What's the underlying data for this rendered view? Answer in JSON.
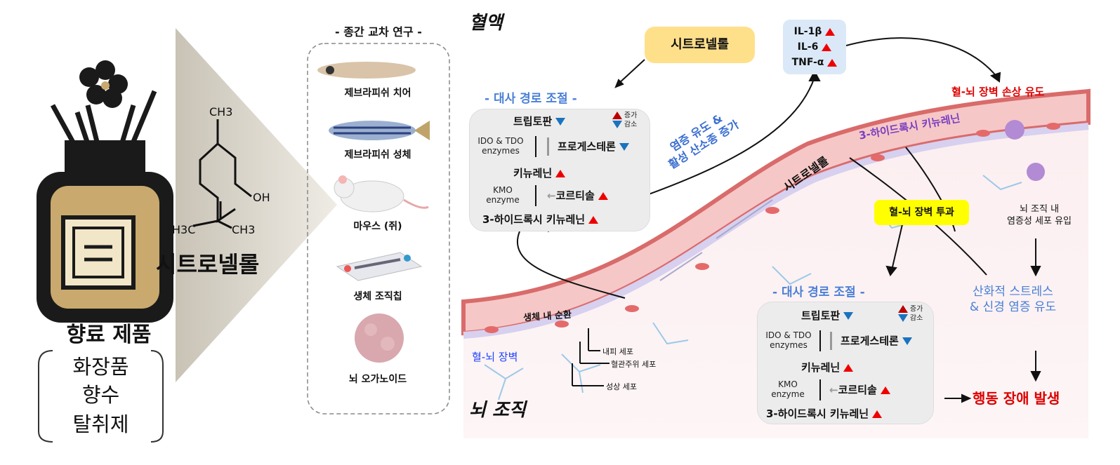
{
  "product": {
    "title": "향료 제품",
    "items": [
      "화장품",
      "향수",
      "탈취제"
    ]
  },
  "compound": {
    "name": "시트로넬롤",
    "atoms": {
      "ch3": "CH3",
      "oh": "OH",
      "h3c": "H3C",
      "ch3b": "CH3"
    }
  },
  "cross_species": {
    "title": "- 종간 교차 연구 -",
    "models": [
      "제브라피쉬 치어",
      "제브라피쉬 성체",
      "마우스 (쥐)",
      "생체 조직칩",
      "뇌 오가노이드"
    ]
  },
  "regions": {
    "blood": "혈액",
    "brain": "뇌 조직"
  },
  "citronellol_box": "시트로넬롤",
  "cytokines": [
    "IL-1β",
    "IL-6",
    "TNF-α"
  ],
  "bbb_damage": "혈-뇌 장벽 손상 유도",
  "inflammation_text": [
    "염증 유도 &",
    "활성 산소종 증가"
  ],
  "hk_label": "3-하이드록시 키뉴레닌",
  "vessel_citronellol": "시트로넬롤",
  "bbb_penetration": "혈-뇌 장벽 투과",
  "inflammatory_cells": [
    "뇌 조직 내",
    "염증성 세포 유입"
  ],
  "oxidative": [
    "산화적 스트레스",
    "& 신경 염증 유도"
  ],
  "behavior": "행동 장애 발생",
  "tissue_labels": {
    "circulation": "생체 내 순환",
    "bbb": "혈-뇌 장벽",
    "endothelial": "내피 세포",
    "pericyte": "혈관주위 세포",
    "astrocyte": "성상 세포"
  },
  "metabolic": {
    "title": "- 대사 경로 조절 -",
    "legend": {
      "increase": "증가",
      "decrease": "감소"
    },
    "tryptophan": "트립토판",
    "ido": [
      "IDO & TDO",
      "enzymes"
    ],
    "progesterone": "프로게스테론",
    "kynurenine": "키뉴레닌",
    "kmo": [
      "KMO",
      "enzyme"
    ],
    "cortisol": "코르티솔",
    "hk": "3-하이드록시 키뉴레닌"
  },
  "colors": {
    "blue_title": "#4a7fd6",
    "red": "#e00000",
    "yellow_box": "#ffe08a",
    "highlight": "#ffff00",
    "purple": "#7a3fc0"
  }
}
